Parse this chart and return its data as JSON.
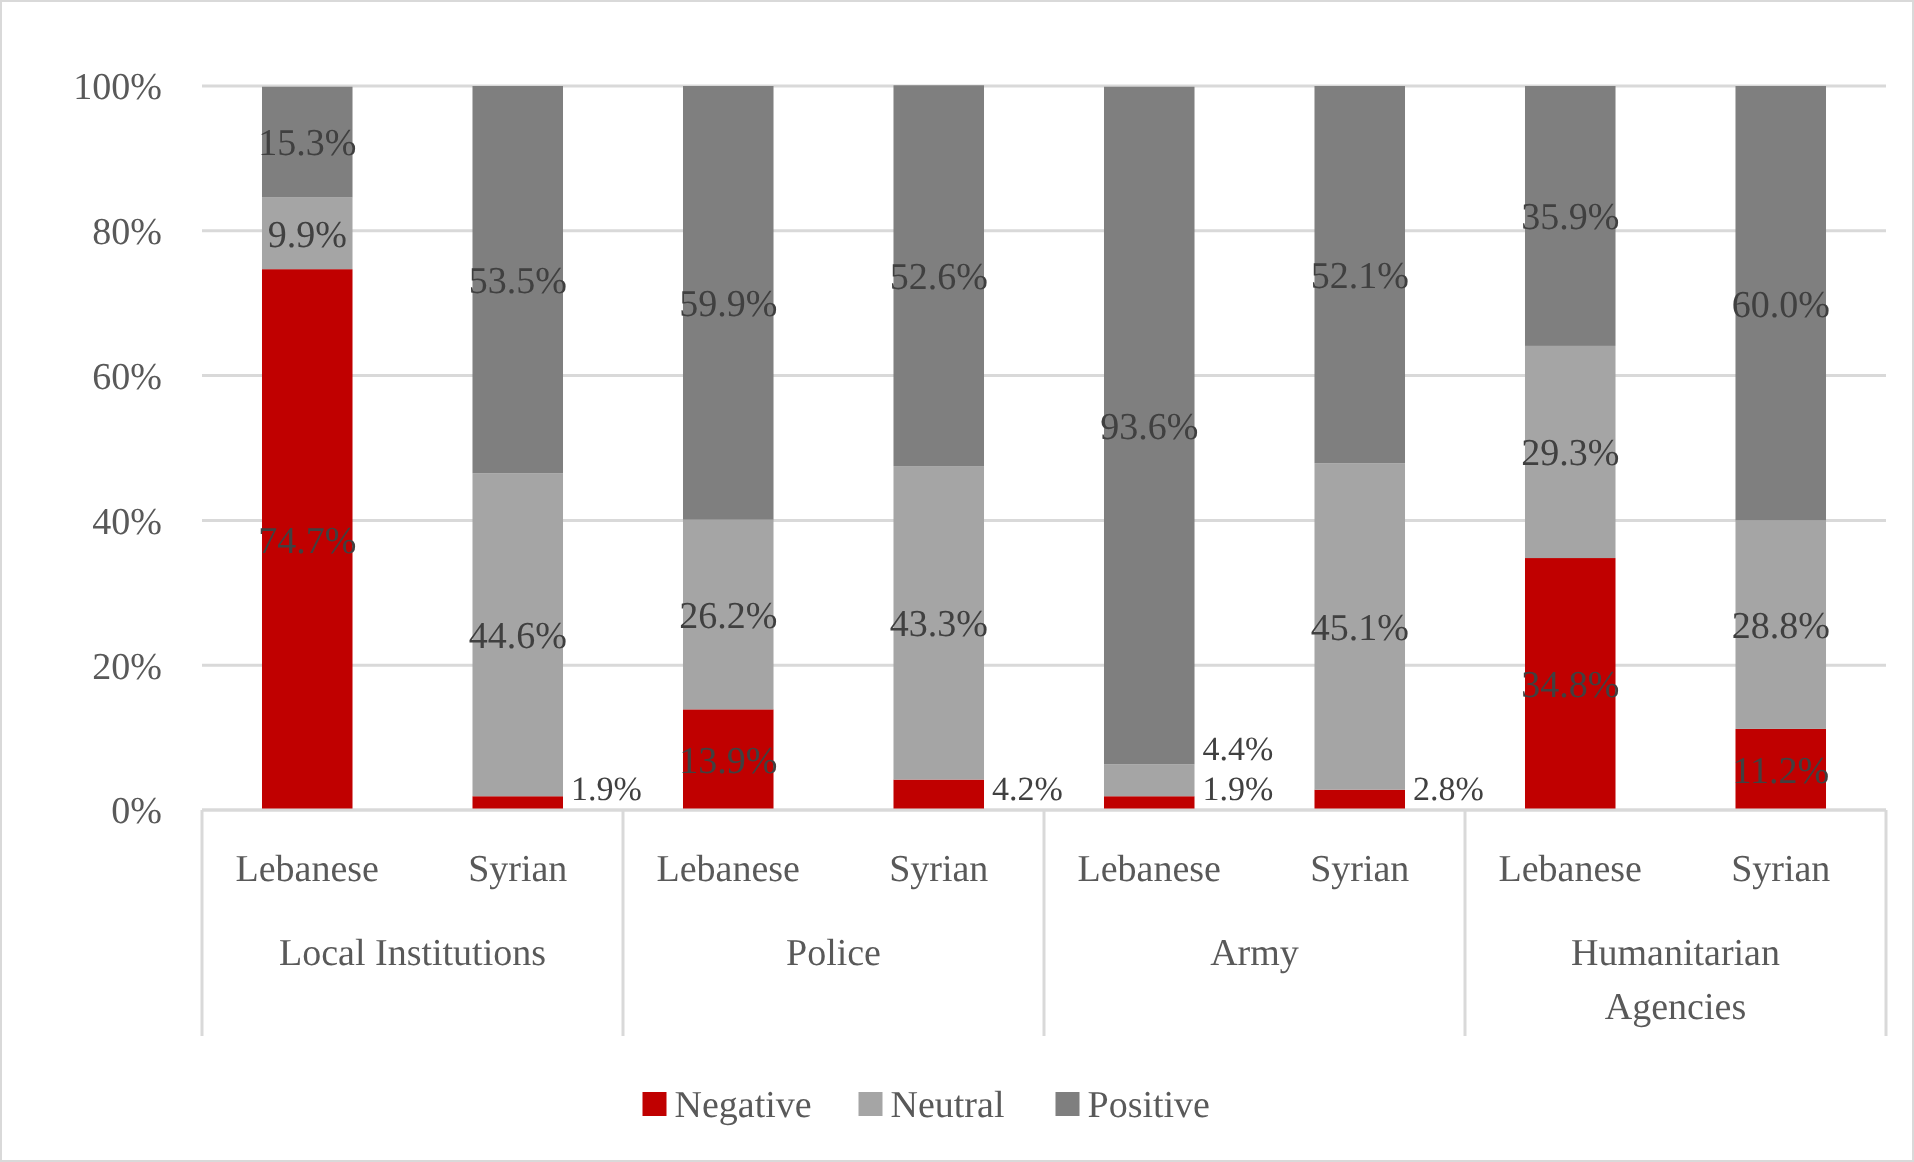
{
  "chart_data": {
    "type": "bar",
    "stacked": true,
    "categories": [
      "Lebanese",
      "Syrian",
      "Lebanese",
      "Syrian",
      "Lebanese",
      "Syrian",
      "Lebanese",
      "Syrian"
    ],
    "annotations": [
      "Local Institutions",
      "Police",
      "Army",
      "Humanitarian Agencies"
    ],
    "series": [
      {
        "name": "Negative",
        "color": "#c00000",
        "values": [
          74.7,
          1.9,
          13.9,
          4.2,
          1.9,
          2.8,
          34.8,
          11.2
        ]
      },
      {
        "name": "Neutral",
        "color": "#a5a5a5",
        "values": [
          9.9,
          44.6,
          26.2,
          43.3,
          4.4,
          45.1,
          29.3,
          28.8
        ]
      },
      {
        "name": "Positive",
        "color": "#7f7f7f",
        "values": [
          15.3,
          53.5,
          59.9,
          52.6,
          93.6,
          52.1,
          35.9,
          60.0
        ]
      }
    ],
    "value_labels": [
      [
        "74.7%",
        "1.9%",
        "13.9%",
        "4.2%",
        "1.9%",
        "2.8%",
        "34.8%",
        "11.2%"
      ],
      [
        "9.9%",
        "44.6%",
        "26.2%",
        "43.3%",
        "4.4%",
        "45.1%",
        "29.3%",
        "28.8%"
      ],
      [
        "15.3%",
        "53.5%",
        "59.9%",
        "52.6%",
        "93.6%",
        "52.1%",
        "35.9%",
        "60.0%"
      ]
    ],
    "ylim": [
      0,
      100
    ],
    "yticks": [
      {
        "value": 0,
        "label": "0%"
      },
      {
        "value": 20,
        "label": "20%"
      },
      {
        "value": 40,
        "label": "40%"
      },
      {
        "value": 60,
        "label": "60%"
      },
      {
        "value": 80,
        "label": "80%"
      },
      {
        "value": 100,
        "label": "100%"
      }
    ],
    "grid": "y",
    "legend": "bottom"
  }
}
